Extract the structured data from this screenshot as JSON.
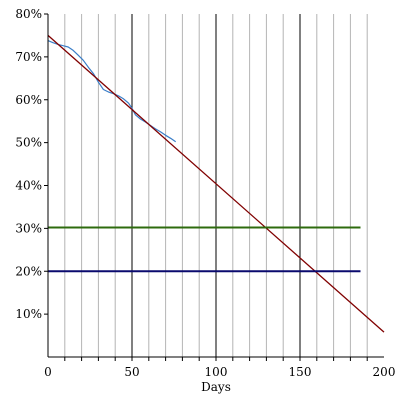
{
  "chart_data": {
    "type": "line",
    "title": "",
    "xlabel": "Days",
    "ylabel": "",
    "xlim": [
      0,
      200
    ],
    "ylim": [
      0,
      80
    ],
    "x_ticks": [
      0,
      50,
      100,
      150,
      200
    ],
    "x_tick_labels": [
      "0",
      "50",
      "100",
      "150",
      "200"
    ],
    "y_ticks": [
      10,
      20,
      30,
      40,
      50,
      60,
      70,
      80
    ],
    "y_tick_labels": [
      "10%",
      "20%",
      "30%",
      "40%",
      "50%",
      "60%",
      "70%",
      "80%"
    ],
    "x_major_grid": [
      50,
      100,
      150
    ],
    "x_minor_grid": [
      10,
      20,
      30,
      40,
      60,
      70,
      80,
      90,
      110,
      120,
      130,
      140,
      160,
      170,
      180,
      190
    ],
    "grid": true,
    "legend": "none",
    "series": [
      {
        "color": "#3a7ec8",
        "style": "measured",
        "x": [
          0,
          3,
          6,
          9,
          12,
          15,
          18,
          21,
          24,
          27,
          30,
          33,
          36,
          39,
          42,
          45,
          48,
          50,
          52,
          55,
          58,
          61,
          64,
          67,
          70,
          73,
          76
        ],
        "y": [
          73.8,
          73.3,
          72.9,
          72.6,
          72.3,
          71.5,
          70.4,
          69.2,
          67.6,
          66.1,
          64.1,
          62.4,
          61.8,
          61.4,
          60.9,
          60.2,
          59.2,
          58.0,
          56.5,
          55.5,
          54.8,
          54.0,
          53.2,
          52.5,
          51.7,
          51.0,
          50.2
        ]
      },
      {
        "color": "#800000",
        "style": "trend",
        "x": [
          0,
          200
        ],
        "y": [
          75,
          5.8
        ]
      },
      {
        "color": "#2e6b0e",
        "style": "threshold",
        "x": [
          0,
          186
        ],
        "y": [
          30.2,
          30.2
        ]
      },
      {
        "color": "#0a0a6e",
        "style": "threshold",
        "x": [
          0,
          186
        ],
        "y": [
          20,
          20
        ]
      }
    ]
  }
}
